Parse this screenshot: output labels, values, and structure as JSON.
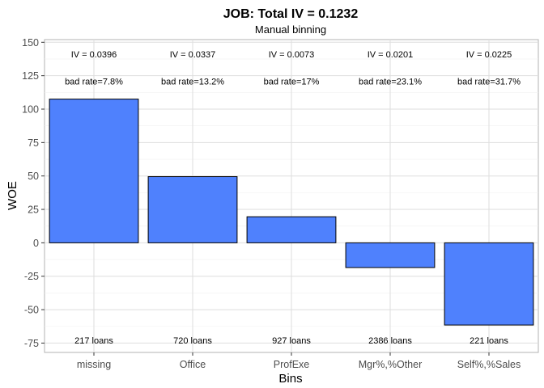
{
  "chart_data": {
    "type": "bar",
    "title": "JOB: Total IV = 0.1232",
    "subtitle": "Manual binning",
    "xlabel": "Bins",
    "ylabel": "WOE",
    "categories": [
      "missing",
      "Office",
      "ProfExe",
      "Mgr%,%Other",
      "Self%,%Sales"
    ],
    "values": [
      107.5,
      49.5,
      19.5,
      -18.5,
      -61.5
    ],
    "iv_labels": [
      "IV = 0.0396",
      "IV = 0.0337",
      "IV = 0.0073",
      "IV = 0.0201",
      "IV = 0.0225"
    ],
    "bad_rate_labels": [
      "bad rate=7.8%",
      "bad rate=13.2%",
      "bad rate=17%",
      "bad rate=23.1%",
      "bad rate=31.7%"
    ],
    "count_labels": [
      "217 loans",
      "720 loans",
      "927 loans",
      "2386 loans",
      "221 loans"
    ],
    "iv_label_y": 141,
    "bad_rate_label_y": 121,
    "count_label_y": -73,
    "ylim": [
      -82,
      152
    ],
    "yticks": [
      -75,
      -50,
      -25,
      0,
      25,
      50,
      75,
      100,
      125,
      150
    ],
    "grid": true,
    "legend": "none",
    "bar_color": "#4f81fd",
    "bar_outline": "#000000"
  }
}
